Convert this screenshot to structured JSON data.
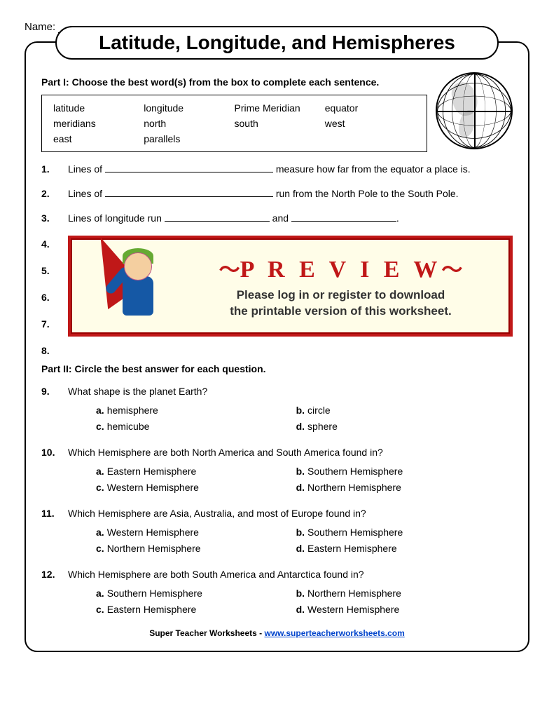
{
  "name_label": "Name:",
  "title": "Latitude, Longitude, and Hemispheres",
  "part1": {
    "heading": "Part I:  Choose the best word(s) from the box to complete each sentence.",
    "wordbox": [
      [
        "latitude",
        "longitude",
        "Prime Meridian",
        "equator"
      ],
      [
        "meridians",
        "north",
        "south",
        "west"
      ],
      [
        "east",
        "parallels",
        "",
        ""
      ]
    ],
    "q1": {
      "num": "1.",
      "pre": "Lines of ",
      "post": " measure how far from the equator a place is."
    },
    "q2": {
      "num": "2.",
      "pre": "Lines of ",
      "post": " run from the North Pole to the South Pole."
    },
    "q3": {
      "num": "3.",
      "pre": "Lines of longitude run ",
      "mid": " and ",
      "post": "."
    },
    "hidden_nums": [
      "4.",
      "5.",
      "6.",
      "7.",
      "8."
    ]
  },
  "preview": {
    "title_text": "P R E V I E W",
    "line1": "Please log in or register to download",
    "line2": "the printable version of this worksheet."
  },
  "part2": {
    "heading": "Part II:  Circle the best answer for each question.",
    "questions": [
      {
        "num": "9.",
        "text": "What shape is the planet Earth?",
        "choices": [
          {
            "lbl": "a.",
            "txt": "hemisphere"
          },
          {
            "lbl": "b.",
            "txt": "circle"
          },
          {
            "lbl": "c.",
            "txt": "hemicube"
          },
          {
            "lbl": "d.",
            "txt": "sphere"
          }
        ]
      },
      {
        "num": "10.",
        "text": "Which Hemisphere are both North America and South America found in?",
        "choices": [
          {
            "lbl": "a.",
            "txt": "Eastern Hemisphere"
          },
          {
            "lbl": "b.",
            "txt": "Southern  Hemisphere"
          },
          {
            "lbl": "c.",
            "txt": "Western Hemisphere"
          },
          {
            "lbl": "d.",
            "txt": "Northern  Hemisphere"
          }
        ]
      },
      {
        "num": "11.",
        "text": "Which Hemisphere are Asia, Australia, and most of Europe found in?",
        "choices": [
          {
            "lbl": "a.",
            "txt": "Western Hemisphere"
          },
          {
            "lbl": "b.",
            "txt": "Southern  Hemisphere"
          },
          {
            "lbl": "c.",
            "txt": "Northern Hemisphere"
          },
          {
            "lbl": "d.",
            "txt": "Eastern  Hemisphere"
          }
        ]
      },
      {
        "num": "12.",
        "text": "Which Hemisphere are both South America and Antarctica found in?",
        "choices": [
          {
            "lbl": "a.",
            "txt": "Southern Hemisphere"
          },
          {
            "lbl": "b.",
            "txt": "Northern  Hemisphere"
          },
          {
            "lbl": "c.",
            "txt": "Eastern Hemisphere"
          },
          {
            "lbl": "d.",
            "txt": "Western  Hemisphere"
          }
        ]
      }
    ]
  },
  "footer": {
    "text": "Super Teacher Worksheets - ",
    "link": "www.superteacherworksheets.com"
  }
}
